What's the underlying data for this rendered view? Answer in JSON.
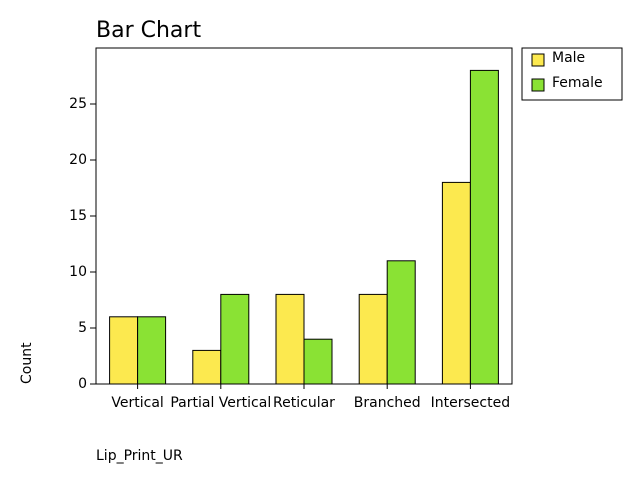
{
  "chart_data": {
    "type": "bar",
    "title": "Bar Chart",
    "x_label": "Lip_Print_UR",
    "y_label": "Count",
    "categories": [
      "Vertical",
      "Partial Vertical",
      "Reticular",
      "Branched",
      "Intersected"
    ],
    "series": [
      {
        "name": "Male",
        "color": "#fce94f",
        "values": [
          6,
          3,
          8,
          8,
          18
        ]
      },
      {
        "name": "Female",
        "color": "#8ae234",
        "values": [
          6,
          8,
          4,
          11,
          28
        ]
      }
    ],
    "ylim": [
      0,
      30
    ],
    "yticks": [
      0,
      5,
      10,
      15,
      20,
      25
    ],
    "legend": "outside-right"
  }
}
